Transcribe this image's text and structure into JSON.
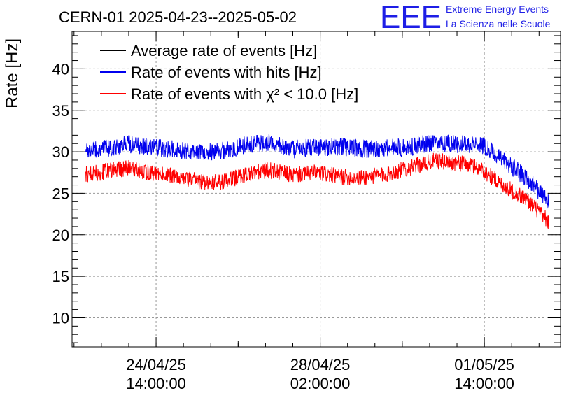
{
  "chart_data": {
    "type": "line",
    "title": "CERN-01 2025-04-23--2025-05-02",
    "xlabel": "",
    "ylabel": "Rate [Hz]",
    "ylim": [
      6.5,
      44.5
    ],
    "xlim": [
      "2025-04-22T19:00:00",
      "2025-05-03T05:00:00"
    ],
    "y_ticks": [
      10,
      15,
      20,
      25,
      30,
      35,
      40
    ],
    "x_ticks": [
      {
        "x": "2025-04-24T14:00:00",
        "line1": "24/04/25",
        "line2": "14:00:00"
      },
      {
        "x": "2025-04-28T02:00:00",
        "line1": "28/04/25",
        "line2": "02:00:00"
      },
      {
        "x": "2025-05-01T14:00:00",
        "line1": "01/05/25",
        "line2": "14:00:00"
      }
    ],
    "grid": true,
    "legend_position": "top-left",
    "series": [
      {
        "name": "Average rate of events [Hz]",
        "color": "#000000",
        "x": [],
        "values": []
      },
      {
        "name": "Rate of events with hits [Hz]",
        "color": "#0000ee",
        "noise": 1.1,
        "x": [
          "2025-04-23T02:00:00",
          "2025-04-23T12:00:00",
          "2025-04-24T00:00:00",
          "2025-04-24T12:00:00",
          "2025-04-25T00:00:00",
          "2025-04-25T12:00:00",
          "2025-04-26T00:00:00",
          "2025-04-26T12:00:00",
          "2025-04-27T00:00:00",
          "2025-04-27T12:00:00",
          "2025-04-28T00:00:00",
          "2025-04-28T12:00:00",
          "2025-04-29T00:00:00",
          "2025-04-29T12:00:00",
          "2025-04-30T00:00:00",
          "2025-04-30T12:00:00",
          "2025-05-01T00:00:00",
          "2025-05-01T12:00:00",
          "2025-05-02T00:00:00",
          "2025-05-02T12:00:00",
          "2025-05-02T23:00:00"
        ],
        "values": [
          30.2,
          30.4,
          30.9,
          30.5,
          30.3,
          30.0,
          30.1,
          30.8,
          31.1,
          30.3,
          30.6,
          30.6,
          30.3,
          30.4,
          30.6,
          31.2,
          30.9,
          31.0,
          28.9,
          26.8,
          24.0
        ]
      },
      {
        "name": "Rate of events with χ² < 10.0 [Hz]",
        "color": "#ff0000",
        "noise": 1.0,
        "x": [
          "2025-04-23T02:00:00",
          "2025-04-23T12:00:00",
          "2025-04-24T00:00:00",
          "2025-04-24T12:00:00",
          "2025-04-25T00:00:00",
          "2025-04-25T12:00:00",
          "2025-04-26T00:00:00",
          "2025-04-26T12:00:00",
          "2025-04-27T00:00:00",
          "2025-04-27T12:00:00",
          "2025-04-28T00:00:00",
          "2025-04-28T12:00:00",
          "2025-04-29T00:00:00",
          "2025-04-29T12:00:00",
          "2025-04-30T00:00:00",
          "2025-04-30T12:00:00",
          "2025-05-01T00:00:00",
          "2025-05-01T12:00:00",
          "2025-05-02T00:00:00",
          "2025-05-02T12:00:00",
          "2025-05-02T23:00:00"
        ],
        "values": [
          27.3,
          27.6,
          28.1,
          27.4,
          27.1,
          26.4,
          26.3,
          27.3,
          27.8,
          27.2,
          27.5,
          27.0,
          26.9,
          27.3,
          28.1,
          28.9,
          28.7,
          28.0,
          25.9,
          24.2,
          21.5
        ]
      }
    ]
  },
  "logo": {
    "mark": "EEE",
    "line1": "Extreme Energy Events",
    "line2": "La Scienza nelle Scuole"
  }
}
